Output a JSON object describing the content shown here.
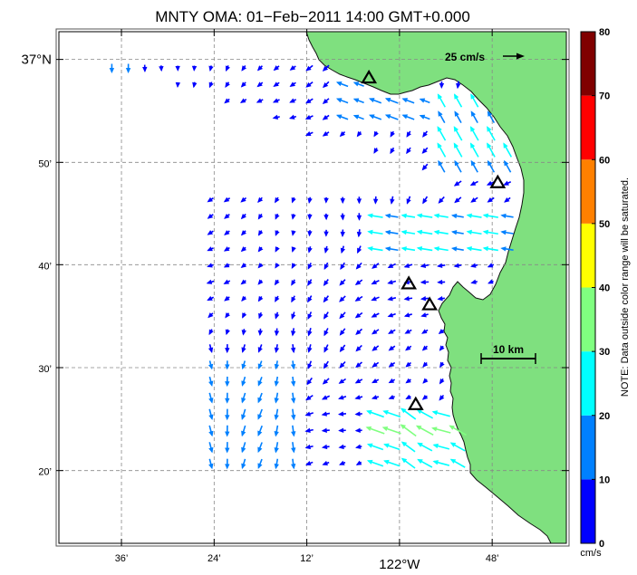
{
  "title": "MNTY OMA: 01−Feb−2011 14:00 GMT+0.000",
  "map": {
    "lat_labels": [
      {
        "lat": 37.0,
        "text": "37°N",
        "big": true
      },
      {
        "lat": 36.833,
        "text": "50’",
        "big": false
      },
      {
        "lat": 36.667,
        "text": "40’",
        "big": false
      },
      {
        "lat": 36.5,
        "text": "30’",
        "big": false
      },
      {
        "lat": 36.333,
        "text": "20’",
        "big": false
      }
    ],
    "lon_labels": [
      {
        "lon": -122.6,
        "text": "36’",
        "big": false
      },
      {
        "lon": -122.4,
        "text": "24’",
        "big": false
      },
      {
        "lon": -122.2,
        "text": "12’",
        "big": false
      },
      {
        "lon": -122.0,
        "text": "122°W",
        "big": true
      },
      {
        "lon": -121.8,
        "text": "48’",
        "big": false
      }
    ],
    "extent": {
      "lon_min": -122.735,
      "lon_max": -121.64,
      "lat_min": 36.215,
      "lat_max": 37.045
    },
    "grid": "dashed",
    "land_color": "#7fe07f",
    "stations": [
      {
        "lon": -122.066,
        "lat": 36.97
      },
      {
        "lon": -121.788,
        "lat": 36.8
      },
      {
        "lon": -121.98,
        "lat": 36.636
      },
      {
        "lon": -121.935,
        "lat": 36.602
      },
      {
        "lon": -121.965,
        "lat": 36.44
      }
    ],
    "ref_vector": {
      "label": "25 cm/s",
      "speed_cm_s": 25
    },
    "scale_bar": {
      "label": "10 km",
      "km": 10
    }
  },
  "colorbar": {
    "unit": "cm/s",
    "ticks": [
      "0",
      "10",
      "20",
      "30",
      "40",
      "50",
      "60",
      "70",
      "80"
    ],
    "colors": [
      "#0000ff",
      "#0080ff",
      "#00ffff",
      "#80ff80",
      "#ffff00",
      "#ff8000",
      "#ff0000",
      "#800000"
    ],
    "note": "NOTE: Data outside color range will be saturated."
  }
}
